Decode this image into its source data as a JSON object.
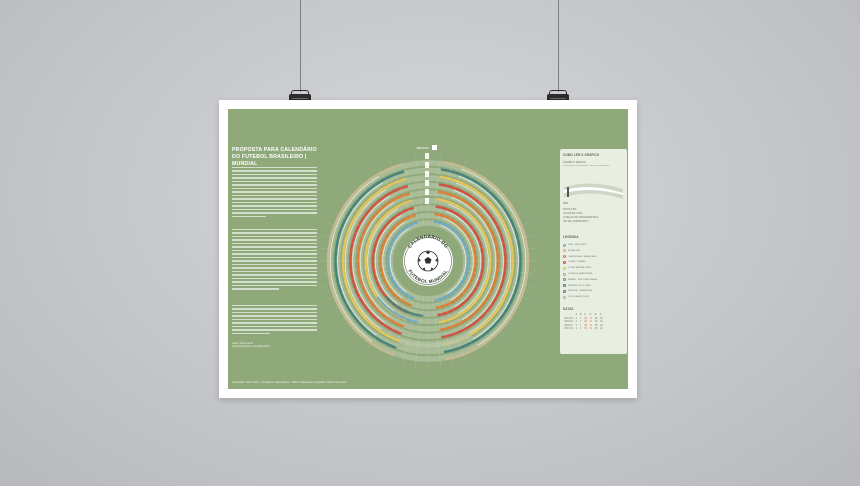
{
  "poster": {
    "title_lines": [
      "PROPOSTA PARA CALENDÁRIO",
      "DO FUTEBOL BRASILEIRO | MUNDIAL"
    ],
    "wheel_title_top": "CALENDÁRIO DO",
    "wheel_title_bottom": "FUTEBOL MUNDIAL",
    "semana_label": "SEMANA",
    "author": "Heitor Torres Reis",
    "site": "www.heitortorres.com/calendario",
    "bottom_credit": "Concepção: Heitor Torres · Consultoria: Felipe Barreto · Dados: Federações | Infográfico: Heitor Torres Reis"
  },
  "card": {
    "how_to_read": "COMO LER O GRÁFICO",
    "sample_label": "EXEMPLO: SEMANA",
    "sample_desc": "Cada semana corresponde a uma coluna do gráfico",
    "mes_label": "MÊS",
    "notes": [
      "DATAS FIFA",
      "JOGOS DE COPA",
      "JANELAS DE TRANSFERÊNCIA",
      "FIM DE CAMPEONATO"
    ],
    "legend_title": "LEGENDA",
    "legend": [
      {
        "label": "FIFA · SELEÇÕES",
        "color": "#6aa9c8"
      },
      {
        "label": "ESTADUAIS",
        "color": "#c9b98f"
      },
      {
        "label": "CAMPEONATO BRASILEIRO",
        "color": "#e07a2f"
      },
      {
        "label": "COPA DO BRASIL",
        "color": "#d6493f"
      },
      {
        "label": "COPA LIBERTADORES",
        "color": "#e9c452"
      },
      {
        "label": "COPA SUL-AMERICANA",
        "color": "#8fbf6c"
      },
      {
        "label": "FÉRIAS · PRÉ-TEMPORADA",
        "color": "#7a8f6a"
      },
      {
        "label": "MUNDIAL DE CLUBES",
        "color": "#3e7f7b"
      },
      {
        "label": "EUROPA · CHAMPIONS",
        "color": "#5c6f90"
      },
      {
        "label": "JOGOS AMISTOSOS",
        "color": "#a9b59c"
      }
    ],
    "table_title": "DATAS",
    "table_header": [
      "",
      "A",
      "B",
      "C",
      "D",
      "E",
      "F"
    ],
    "table_rows": [
      [
        "2014-15",
        "4",
        "7",
        "34",
        "11",
        "15",
        "19"
      ],
      [
        "2015-16",
        "4",
        "7",
        "34",
        "11",
        "15",
        "19"
      ],
      [
        "2016-17",
        "4",
        "7",
        "34",
        "11",
        "15",
        "19"
      ],
      [
        "2017-18",
        "4",
        "7",
        "34",
        "11",
        "15",
        "19"
      ]
    ]
  },
  "colors": {
    "background": "#8fa97b",
    "accent_orange": "#e07a2f",
    "accent_red": "#d6493f",
    "accent_yellow": "#e9c452",
    "accent_teal": "#3e7f7b",
    "accent_blue": "#6aa9c8"
  }
}
